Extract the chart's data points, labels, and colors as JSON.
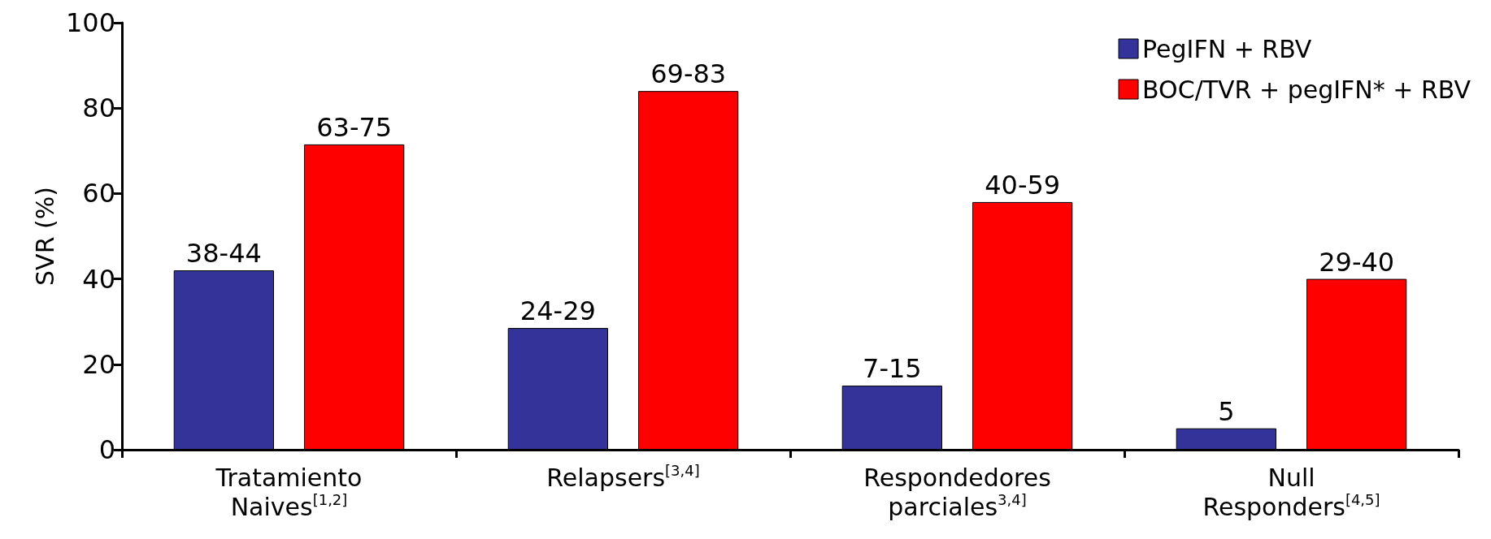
{
  "chart_data": {
    "type": "bar",
    "ylabel": "SVR (%)",
    "categories": [
      "Tratamiento\nNaives$^{[1,2]}$",
      "Relapsers$^{[3,4]}$",
      "Respondedores\nparciales$^{3,4]}$",
      "Null\nResponders$^{[4,5]}$"
    ],
    "series": [
      {
        "name": "PegIFN + RBV",
        "color": "#333399",
        "values": [
          42,
          28.5,
          15,
          5
        ],
        "value_labels": [
          "38-44",
          "24-29",
          "7-15",
          "5"
        ]
      },
      {
        "name": "BOC/TVR + pegIFN* + RBV",
        "color": "#ff0000",
        "values": [
          71.5,
          84,
          58,
          40
        ],
        "value_labels": [
          "63-75",
          "69-83",
          "40-59",
          "29-40"
        ]
      }
    ],
    "ylim": [
      0,
      100
    ],
    "yticks": [
      0,
      20,
      40,
      60,
      80,
      100
    ],
    "grid": false,
    "legend": "top right"
  }
}
